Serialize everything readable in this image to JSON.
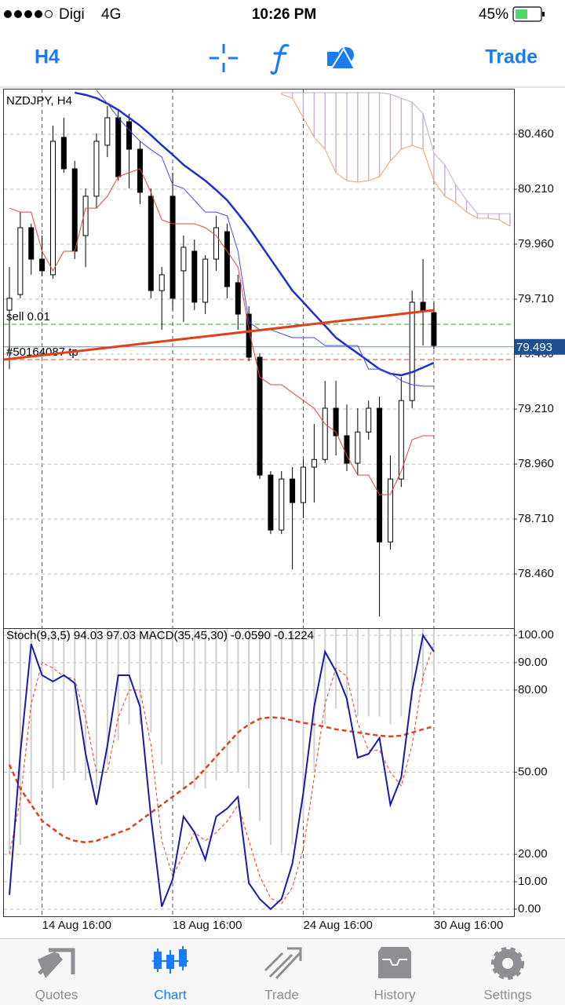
{
  "status_bar": {
    "carrier": "Digi",
    "network": "4G",
    "time": "10:26 PM",
    "battery": "45%"
  },
  "toolbar": {
    "timeframe": "H4",
    "action": "Trade"
  },
  "chart_data": [
    {
      "type": "candlestick",
      "title": "NZDJPY, H4",
      "categories": [
        null,
        null,
        null,
        "14 Aug 16:00",
        null,
        null,
        null,
        null,
        null,
        null,
        null,
        null,
        null,
        null,
        null,
        "18 Aug 16:00",
        null,
        null,
        null,
        null,
        null,
        null,
        null,
        null,
        null,
        null,
        null,
        "24 Aug 16:00",
        null,
        null,
        null,
        null,
        null,
        null,
        null,
        null,
        null,
        null,
        null,
        "30 Aug 16:00",
        null,
        null,
        null,
        null,
        null,
        null,
        null
      ],
      "open": [
        79.66,
        79.731,
        80.035,
        79.892,
        79.821,
        80.446,
        80.303,
        79.999,
        80.178,
        80.41,
        80.535,
        80.517,
        80.392,
        80.178,
        79.749,
        80.178,
        79.839,
        79.928,
        79.696,
        79.892,
        80.017,
        79.785,
        79.642,
        79.446,
        78.91,
        78.66,
        78.892,
        78.785,
        78.946,
        78.981,
        79.214,
        79.089,
        78.964,
        79.106,
        79.214,
        78.606,
        78.892,
        79.249,
        79.696,
        79.649,
        null,
        null,
        null,
        null,
        null,
        null,
        null
      ],
      "high": [
        79.856,
        80.106,
        80.053,
        79.999,
        80.499,
        80.535,
        80.339,
        80.214,
        80.464,
        80.589,
        80.571,
        80.553,
        80.428,
        80.214,
        79.856,
        80.285,
        79.999,
        79.981,
        79.91,
        80.089,
        80.053,
        79.821,
        79.678,
        79.464,
        78.928,
        78.928,
        78.946,
        78.981,
        79.142,
        79.339,
        79.339,
        79.231,
        79.214,
        79.249,
        79.267,
        78.999,
        79.356,
        79.749,
        79.892,
        79.696,
        null,
        null,
        null,
        null,
        null,
        null,
        null
      ],
      "low": [
        79.392,
        79.714,
        79.821,
        79.814,
        79.803,
        80.285,
        79.892,
        79.856,
        80.124,
        80.356,
        80.249,
        80.214,
        80.142,
        79.714,
        79.571,
        79.66,
        79.606,
        79.66,
        79.642,
        79.839,
        79.714,
        79.571,
        79.428,
        78.892,
        78.642,
        78.642,
        78.481,
        78.714,
        78.785,
        78.964,
        78.999,
        78.928,
        78.91,
        79.071,
        78.267,
        78.571,
        78.856,
        79.214,
        79.499,
        79.481,
        null,
        null,
        null,
        null,
        null,
        null,
        null
      ],
      "close": [
        79.714,
        80.035,
        79.892,
        79.839,
        80.428,
        80.303,
        79.928,
        80.178,
        80.428,
        80.535,
        80.267,
        80.392,
        80.196,
        79.749,
        79.821,
        79.714,
        79.946,
        79.696,
        79.892,
        80.035,
        79.767,
        79.642,
        79.446,
        78.91,
        78.66,
        78.892,
        78.785,
        78.946,
        78.981,
        79.214,
        79.089,
        78.964,
        79.106,
        79.214,
        78.606,
        78.892,
        79.249,
        79.696,
        79.66,
        79.499,
        null,
        null,
        null,
        null,
        null,
        null,
        null
      ],
      "ylim": [
        78.214,
        80.667
      ],
      "yticks": [
        {
          "value": 80.46,
          "label": "80.460"
        },
        {
          "value": 80.21,
          "label": "80.210"
        },
        {
          "value": 79.96,
          "label": "79.960"
        },
        {
          "value": 79.71,
          "label": "79.710"
        },
        {
          "value": 79.46,
          "label": "79.460"
        },
        {
          "value": 79.21,
          "label": "79.210"
        },
        {
          "value": 78.96,
          "label": "78.960"
        },
        {
          "value": 78.71,
          "label": "78.710"
        },
        {
          "value": 78.46,
          "label": "78.460"
        }
      ],
      "grid": true,
      "overlays": [
        {
          "color": "#1c2fc8",
          "values": [
            null,
            null,
            null,
            null,
            null,
            null,
            80.649,
            80.639,
            80.624,
            80.599,
            80.571,
            80.535,
            80.499,
            80.456,
            80.41,
            80.367,
            80.321,
            80.285,
            80.249,
            80.206,
            80.16,
            80.099,
            80.035,
            79.964,
            79.892,
            79.821,
            79.749,
            79.696,
            79.642,
            79.589,
            79.535,
            79.499,
            79.464,
            79.428,
            79.392,
            79.371,
            79.364,
            79.378,
            79.399,
            79.421,
            null,
            null,
            null,
            null,
            null,
            null,
            null
          ]
        },
        {
          "color": "#4b4bd6",
          "values": [
            null,
            null,
            null,
            null,
            null,
            null,
            null,
            null,
            80.66,
            80.6,
            80.535,
            80.48,
            80.428,
            80.39,
            80.356,
            80.231,
            80.214,
            80.16,
            80.106,
            80.106,
            80.089,
            79.928,
            79.606,
            79.571,
            79.571,
            79.553,
            79.535,
            79.535,
            79.535,
            79.499,
            79.499,
            79.499,
            79.499,
            79.392,
            79.392,
            79.374,
            79.339,
            79.321,
            79.314,
            79.314,
            null,
            null,
            null,
            null,
            null,
            null,
            null
          ]
        },
        {
          "color": "#e4463c",
          "values": [
            80.124,
            80.106,
            80.106,
            79.928,
            79.839,
            79.928,
            79.928,
            80.124,
            80.124,
            80.178,
            80.267,
            80.285,
            80.303,
            80.196,
            80.071,
            80.053,
            80.053,
            80.053,
            80.035,
            79.999,
            79.928,
            79.856,
            79.571,
            79.356,
            79.321,
            79.321,
            79.285,
            79.249,
            79.214,
            79.142,
            79.106,
            78.999,
            78.91,
            78.91,
            78.821,
            78.821,
            78.928,
            79.071,
            79.089,
            79.089,
            null,
            null,
            null,
            null,
            null,
            null,
            null
          ]
        }
      ],
      "cloud": {
        "color": "#c9b3d3",
        "upper": {
          "color": "#c3a8cf",
          "values": [
            null,
            null,
            null,
            null,
            null,
            null,
            null,
            null,
            null,
            null,
            null,
            null,
            null,
            null,
            null,
            null,
            null,
            null,
            null,
            null,
            null,
            null,
            null,
            null,
            null,
            80.649,
            80.649,
            80.649,
            80.649,
            80.649,
            80.649,
            80.649,
            80.649,
            80.649,
            80.649,
            80.642,
            80.624,
            80.606,
            80.553,
            80.374,
            80.321,
            80.231,
            80.16,
            80.099,
            80.099,
            80.099,
            80.099
          ]
        },
        "lower": {
          "color": "#e8a070",
          "values": [
            null,
            null,
            null,
            null,
            null,
            null,
            null,
            null,
            null,
            null,
            null,
            null,
            null,
            null,
            null,
            null,
            null,
            null,
            null,
            null,
            null,
            null,
            null,
            null,
            null,
            80.642,
            80.624,
            80.535,
            80.446,
            80.392,
            80.285,
            80.249,
            80.242,
            80.249,
            80.267,
            80.339,
            80.392,
            80.41,
            80.392,
            80.249,
            80.178,
            80.149,
            80.106,
            80.078,
            80.078,
            80.071,
            80.042
          ]
        }
      },
      "trend_line": {
        "color": "#e0401c",
        "start": 79.435,
        "end": 79.66
      },
      "levels": [
        {
          "label": "sell 0.01",
          "value": 79.596,
          "color": "#3a9a3a"
        },
        {
          "label": "#50164087 tp",
          "value": 79.435,
          "color": "#e0401c"
        }
      ],
      "current_price": 79.493
    },
    {
      "type": "line",
      "title": "Stoch(9,3,5) 94.03 97.03 MACD(35,45,30) -0.0590 -0.1224",
      "ylim": [
        -2.9,
        102.6
      ],
      "yticks": [
        {
          "value": 100,
          "label": "100.00"
        },
        {
          "value": 90,
          "label": "90.00"
        },
        {
          "value": 80,
          "label": "80.00"
        },
        {
          "value": 50,
          "label": "50.00"
        },
        {
          "value": 20,
          "label": "20.00"
        },
        {
          "value": 10,
          "label": "10.00"
        },
        {
          "value": 0,
          "label": "0.00"
        }
      ],
      "y2lim": [
        -0.36,
        0
      ],
      "grid": true,
      "series": [
        {
          "type": "bar",
          "axis": "y2",
          "color": "#cfcfcf",
          "values": [
            -0.28,
            -0.27,
            -0.22,
            -0.2,
            -0.2,
            -0.19,
            -0.18,
            -0.19,
            -0.2,
            -0.17,
            -0.14,
            -0.12,
            -0.12,
            -0.13,
            -0.17,
            -0.19,
            -0.2,
            -0.2,
            -0.2,
            -0.19,
            -0.18,
            -0.18,
            -0.2,
            -0.24,
            -0.27,
            -0.28,
            -0.27,
            -0.24,
            -0.18,
            -0.12,
            -0.1,
            -0.1,
            -0.11,
            -0.11,
            -0.11,
            -0.12,
            -0.11,
            -0.09,
            -0.07,
            -0.059
          ]
        },
        {
          "type": "line",
          "axis": "y2",
          "dash": true,
          "color": "#e0401c",
          "values": [
            -0.17,
            -0.2,
            -0.22,
            -0.24,
            -0.25,
            -0.26,
            -0.265,
            -0.267,
            -0.265,
            -0.26,
            -0.255,
            -0.25,
            -0.24,
            -0.23,
            -0.22,
            -0.21,
            -0.2,
            -0.19,
            -0.175,
            -0.16,
            -0.145,
            -0.13,
            -0.12,
            -0.113,
            -0.111,
            -0.112,
            -0.115,
            -0.118,
            -0.12,
            -0.123,
            -0.126,
            -0.128,
            -0.13,
            -0.132,
            -0.134,
            -0.135,
            -0.134,
            -0.13,
            -0.126,
            -0.1224
          ]
        },
        {
          "type": "line",
          "dash": true,
          "color": "#e0401c",
          "values": [
            20,
            40,
            75,
            90,
            88,
            85,
            84,
            70,
            50,
            50,
            70,
            80,
            80,
            60,
            25,
            12,
            20,
            28,
            25,
            28,
            32,
            38,
            25,
            12,
            4,
            2,
            8,
            22,
            48,
            75,
            88,
            85,
            68,
            58,
            58,
            50,
            45,
            60,
            85,
            97.03
          ]
        },
        {
          "type": "line",
          "color": "#1a1aa8",
          "values": [
            5.2,
            56.7,
            96.8,
            85.4,
            83.1,
            85.4,
            82.5,
            56.7,
            38.1,
            59.6,
            85.4,
            85.4,
            73.9,
            33.8,
            0.9,
            10.9,
            33.8,
            28.1,
            18.1,
            33.8,
            36.7,
            41.0,
            9.5,
            3.7,
            0,
            3.7,
            16.6,
            42.4,
            73.9,
            94.0,
            86.8,
            76.8,
            55.3,
            56.7,
            62.5,
            38.1,
            48.1,
            79.7,
            100,
            94.03
          ]
        }
      ]
    }
  ],
  "tab_bar": {
    "tabs": [
      "Quotes",
      "Chart",
      "Trade",
      "History",
      "Settings"
    ],
    "active": "Chart"
  }
}
